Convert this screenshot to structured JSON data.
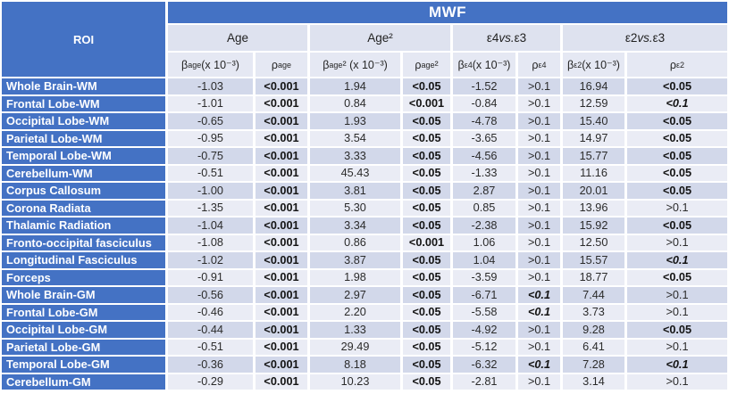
{
  "colors": {
    "accent": "#4472C4",
    "header_row": "#DEE2EF",
    "subheader_row": "#E5E8F3",
    "row_odd": "#D2D8EA",
    "row_even": "#EAECF5",
    "text_dark": "#2b2b2b",
    "text_white": "#ffffff"
  },
  "table": {
    "title": "MWF",
    "roi_header": "ROI",
    "groups": [
      {
        "pre": "Age",
        "vs": "",
        "post": ""
      },
      {
        "pre": "Age²",
        "vs": "",
        "post": ""
      },
      {
        "pre": "ε4 ",
        "vs": "vs.",
        "post": " ε3"
      },
      {
        "pre": "ε2 ",
        "vs": "vs.",
        "post": " ε3"
      }
    ],
    "columns": [
      {
        "id": "beta-age",
        "sym": "β",
        "sub": "age",
        "rest": " (x 10⁻³)"
      },
      {
        "id": "rho-age",
        "sym": "ρ",
        "sub": "age",
        "rest": ""
      },
      {
        "id": "beta-age2",
        "sym": "β",
        "sub": "age",
        "rest": "² (x 10⁻³)"
      },
      {
        "id": "rho-age2",
        "sym": "ρ",
        "sub": "age",
        "rest": "²"
      },
      {
        "id": "beta-e4",
        "sym": "β",
        "sub": "ε4",
        "rest": " (x 10⁻³)"
      },
      {
        "id": "rho-e4",
        "sym": "ρ",
        "sub": "ε4",
        "rest": ""
      },
      {
        "id": "beta-e2",
        "sym": "β",
        "sub": "ε2",
        "rest": " (x 10⁻³)"
      },
      {
        "id": "rho-e2",
        "sym": "ρ",
        "sub": "ε2",
        "rest": ""
      }
    ],
    "rows": [
      {
        "label": "Whole Brain-WM",
        "values": [
          "-1.03",
          "<0.001",
          "1.94",
          "<0.05",
          "-1.52",
          ">0.1",
          "16.94",
          "<0.05"
        ]
      },
      {
        "label": "Frontal Lobe-WM",
        "values": [
          "-1.01",
          "<0.001",
          "0.84",
          "<0.001",
          "-0.84",
          ">0.1",
          "12.59",
          "<0.1"
        ]
      },
      {
        "label": "Occipital Lobe-WM",
        "values": [
          "-0.65",
          "<0.001",
          "1.93",
          "<0.05",
          "-4.78",
          ">0.1",
          "15.40",
          "<0.05"
        ]
      },
      {
        "label": "Parietal Lobe-WM",
        "values": [
          "-0.95",
          "<0.001",
          "3.54",
          "<0.05",
          "-3.65",
          ">0.1",
          "14.97",
          "<0.05"
        ]
      },
      {
        "label": "Temporal Lobe-WM",
        "values": [
          "-0.75",
          "<0.001",
          "3.33",
          "<0.05",
          "-4.56",
          ">0.1",
          "15.77",
          "<0.05"
        ]
      },
      {
        "label": "Cerebellum-WM",
        "values": [
          "-0.51",
          "<0.001",
          "45.43",
          "<0.05",
          "-1.33",
          ">0.1",
          "11.16",
          "<0.05"
        ]
      },
      {
        "label": "Corpus Callosum",
        "values": [
          "-1.00",
          "<0.001",
          "3.81",
          "<0.05",
          "2.87",
          ">0.1",
          "20.01",
          "<0.05"
        ]
      },
      {
        "label": "Corona Radiata",
        "values": [
          "-1.35",
          "<0.001",
          "5.30",
          "<0.05",
          "0.85",
          ">0.1",
          "13.96",
          ">0.1"
        ]
      },
      {
        "label": "Thalamic Radiation",
        "values": [
          "-1.04",
          "<0.001",
          "3.34",
          "<0.05",
          "-2.38",
          ">0.1",
          "15.92",
          "<0.05"
        ]
      },
      {
        "label": "Fronto-occipital fasciculus",
        "values": [
          "-1.08",
          "<0.001",
          "0.86",
          "<0.001",
          "1.06",
          ">0.1",
          "12.50",
          ">0.1"
        ]
      },
      {
        "label": "Longitudinal Fasciculus",
        "values": [
          "-1.02",
          "<0.001",
          "3.87",
          "<0.05",
          "1.04",
          ">0.1",
          "15.57",
          "<0.1"
        ]
      },
      {
        "label": "Forceps",
        "values": [
          "-0.91",
          "<0.001",
          "1.98",
          "<0.05",
          "-3.59",
          ">0.1",
          "18.77",
          "<0.05"
        ]
      },
      {
        "label": "Whole Brain-GM",
        "values": [
          "-0.56",
          "<0.001",
          "2.97",
          "<0.05",
          "-6.71",
          "<0.1",
          "7.44",
          ">0.1"
        ]
      },
      {
        "label": "Frontal Lobe-GM",
        "values": [
          "-0.46",
          "<0.001",
          "2.20",
          "<0.05",
          "-5.58",
          "<0.1",
          "3.73",
          ">0.1"
        ]
      },
      {
        "label": "Occipital Lobe-GM",
        "values": [
          "-0.44",
          "<0.001",
          "1.33",
          "<0.05",
          "-4.92",
          ">0.1",
          "9.28",
          "<0.05"
        ]
      },
      {
        "label": "Parietal Lobe-GM",
        "values": [
          "-0.51",
          "<0.001",
          "29.49",
          "<0.05",
          "-5.12",
          ">0.1",
          "6.41",
          ">0.1"
        ]
      },
      {
        "label": "Temporal Lobe-GM",
        "values": [
          "-0.36",
          "<0.001",
          "8.18",
          "<0.05",
          "-6.32",
          "<0.1",
          "7.28",
          "<0.1"
        ]
      },
      {
        "label": "Cerebellum-GM",
        "values": [
          "-0.29",
          "<0.001",
          "10.23",
          "<0.05",
          "-2.81",
          ">0.1",
          "3.14",
          ">0.1"
        ]
      }
    ]
  }
}
